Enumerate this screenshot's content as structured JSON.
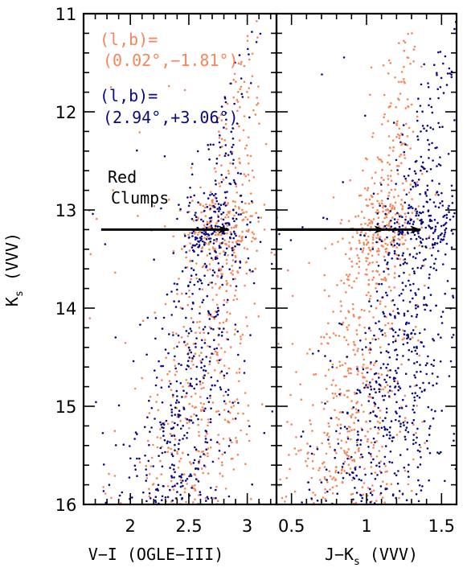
{
  "chart_data": {
    "type": "scatter",
    "colors": {
      "orange": "#F5865A",
      "blue": "#0A0A84"
    },
    "shared_y": {
      "label_main": "K",
      "label_sub": "s",
      "label_suffix": " (VVV)",
      "ylim": [
        16,
        11
      ],
      "ticks": [
        11,
        12,
        13,
        14,
        15,
        16
      ]
    },
    "panels": [
      {
        "id": "left",
        "xlabel": "V−I (OGLE−III)",
        "xlim": [
          1.6,
          3.25
        ],
        "xticks": [
          2,
          2.5,
          3
        ],
        "xtick_labels": [
          "2",
          "2.5",
          "3"
        ],
        "series": [
          {
            "name": "(l,b)=(0.02°,−1.81°)",
            "color": "orange",
            "ridge": [
              [
                16.0,
                2.45
              ],
              [
                15.5,
                2.55
              ],
              [
                15.0,
                2.62
              ],
              [
                14.5,
                2.68
              ],
              [
                14.0,
                2.73
              ],
              [
                13.5,
                2.77
              ],
              [
                13.2,
                2.8
              ],
              [
                13.0,
                2.82
              ],
              [
                12.5,
                2.87
              ],
              [
                12.0,
                2.94
              ],
              [
                11.5,
                3.02
              ],
              [
                11.0,
                3.1
              ]
            ],
            "n": 650
          },
          {
            "name": "(l,b)=(2.94°,+3.06°)",
            "color": "blue",
            "ridge": [
              [
                16.0,
                2.3
              ],
              [
                15.5,
                2.4
              ],
              [
                15.0,
                2.5
              ],
              [
                14.5,
                2.57
              ],
              [
                14.0,
                2.63
              ],
              [
                13.5,
                2.68
              ],
              [
                13.2,
                2.71
              ],
              [
                13.0,
                2.73
              ],
              [
                12.5,
                2.78
              ],
              [
                12.0,
                2.85
              ],
              [
                11.5,
                2.93
              ],
              [
                11.0,
                3.0
              ]
            ],
            "n": 650
          }
        ],
        "arrow": {
          "from": [
            1.75,
            13.2
          ],
          "to": [
            2.84,
            13.2
          ]
        }
      },
      {
        "id": "right",
        "xlabel_main": "J−K",
        "xlabel_sub": "s",
        "xlabel_suffix": " (VVV)",
        "xlim": [
          0.4,
          1.6
        ],
        "xticks": [
          0.5,
          1,
          1.5
        ],
        "xtick_labels": [
          "0.5",
          "1",
          "1.5"
        ],
        "series": [
          {
            "name": "(l,b)=(0.02°,−1.81°)",
            "color": "orange",
            "ridge": [
              [
                16.0,
                0.83
              ],
              [
                15.5,
                0.88
              ],
              [
                15.0,
                0.93
              ],
              [
                14.5,
                0.98
              ],
              [
                14.0,
                1.02
              ],
              [
                13.5,
                1.06
              ],
              [
                13.2,
                1.1
              ],
              [
                13.0,
                1.12
              ],
              [
                12.5,
                1.16
              ],
              [
                12.0,
                1.21
              ],
              [
                11.5,
                1.27
              ],
              [
                11.0,
                1.33
              ]
            ],
            "n": 800
          },
          {
            "name": "(l,b)=(2.94°,+3.06°)",
            "color": "blue",
            "ridge": [
              [
                16.0,
                1.02
              ],
              [
                15.5,
                1.12
              ],
              [
                15.0,
                1.2
              ],
              [
                14.5,
                1.26
              ],
              [
                14.0,
                1.3
              ],
              [
                13.5,
                1.32
              ],
              [
                13.2,
                1.34
              ],
              [
                13.0,
                1.36
              ],
              [
                12.5,
                1.4
              ],
              [
                12.0,
                1.44
              ],
              [
                11.5,
                1.5
              ],
              [
                11.0,
                1.56
              ]
            ],
            "n": 800
          }
        ],
        "arrows": [
          {
            "from": [
              0.4,
              13.2
            ],
            "to": [
              1.12,
              13.2
            ]
          },
          {
            "from": [
              0.4,
              13.2
            ],
            "to": [
              1.36,
              13.2
            ]
          }
        ]
      }
    ],
    "legend": [
      {
        "line1": "(l,b)=",
        "line2": "(0.02°,−1.81°)",
        "color": "orange"
      },
      {
        "line1": "(l,b)=",
        "line2": "(2.94°,+3.06°)",
        "color": "blue"
      }
    ],
    "annotation": {
      "line1": "Red",
      "line2": "Clumps"
    }
  }
}
